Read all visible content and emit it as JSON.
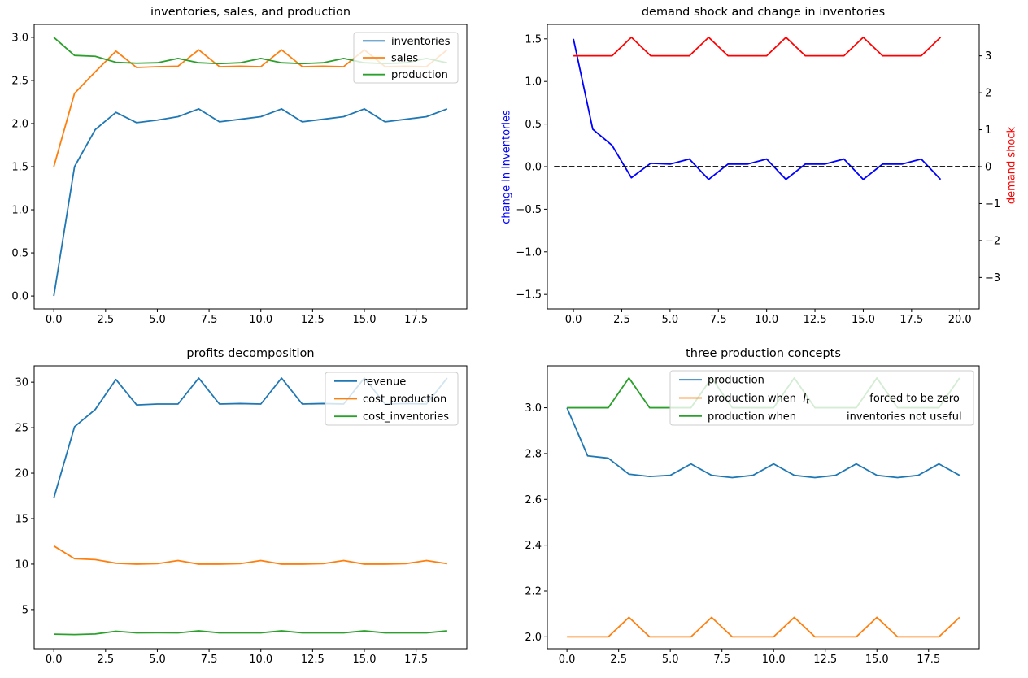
{
  "figure": {
    "background": "#ffffff",
    "text_color": "#000000"
  },
  "chart_data": [
    {
      "id": "inventories-sales-production",
      "type": "line",
      "title": "inventories, sales, and production",
      "xlabel": "",
      "ylabel": "",
      "grid": false,
      "x": [
        0,
        1,
        2,
        3,
        4,
        5,
        6,
        7,
        8,
        9,
        10,
        11,
        12,
        13,
        14,
        15,
        16,
        17,
        18,
        19
      ],
      "series": [
        {
          "name": "inventories",
          "label": "inventories",
          "color": "#1f77b4",
          "values": [
            0.0,
            1.5,
            1.93,
            2.13,
            2.01,
            2.04,
            2.08,
            2.17,
            2.02,
            2.05,
            2.08,
            2.17,
            2.02,
            2.05,
            2.08,
            2.17,
            2.02,
            2.05,
            2.08,
            2.17
          ]
        },
        {
          "name": "sales",
          "label": "sales",
          "color": "#ff7f0e",
          "values": [
            1.5,
            2.35,
            2.6,
            2.84,
            2.65,
            2.66,
            2.665,
            2.855,
            2.66,
            2.665,
            2.66,
            2.855,
            2.66,
            2.665,
            2.66,
            2.855,
            2.66,
            2.665,
            2.66,
            2.855
          ]
        },
        {
          "name": "production",
          "label": "production",
          "color": "#2ca02c",
          "values": [
            3.0,
            2.79,
            2.78,
            2.71,
            2.7,
            2.705,
            2.755,
            2.705,
            2.695,
            2.705,
            2.755,
            2.705,
            2.695,
            2.705,
            2.755,
            2.705,
            2.695,
            2.705,
            2.755,
            2.705
          ]
        }
      ],
      "xlim": [
        -0.95,
        19.95
      ],
      "ylim": [
        -0.15,
        3.15
      ],
      "xticks": {
        "values": [
          0,
          2.5,
          5,
          7.5,
          10,
          12.5,
          15,
          17.5
        ],
        "labels": [
          "0.0",
          "2.5",
          "5.0",
          "7.5",
          "10.0",
          "12.5",
          "15.0",
          "17.5"
        ]
      },
      "yticks": {
        "values": [
          0,
          0.5,
          1,
          1.5,
          2,
          2.5,
          3
        ],
        "labels": [
          "0.0",
          "0.5",
          "1.0",
          "1.5",
          "2.0",
          "2.5",
          "3.0"
        ]
      },
      "legend": {
        "location": "upper right",
        "labels": [
          "inventories",
          "sales",
          "production"
        ]
      }
    },
    {
      "id": "demand-shock-change-in-inventories",
      "type": "line",
      "title": "demand shock and change in inventories",
      "xlabel": "",
      "grid": false,
      "ylabel_left": {
        "text": "change in inventories",
        "color": "#0000ff"
      },
      "ylabel_right": {
        "text": "demand shock",
        "color": "#ff0000"
      },
      "x": [
        0,
        1,
        2,
        3,
        4,
        5,
        6,
        7,
        8,
        9,
        10,
        11,
        12,
        13,
        14,
        15,
        16,
        17,
        18,
        19
      ],
      "series": [
        {
          "name": "change in inventories",
          "axis": "left",
          "color": "#0000ff",
          "values": [
            1.5,
            0.44,
            0.25,
            -0.13,
            0.04,
            0.03,
            0.09,
            -0.15,
            0.03,
            0.03,
            0.09,
            -0.15,
            0.03,
            0.03,
            0.09,
            -0.15,
            0.03,
            0.03,
            0.09,
            -0.15
          ]
        },
        {
          "name": "demand shock",
          "axis": "right",
          "color": "#ff0000",
          "values": [
            3,
            3,
            3,
            3.5,
            3,
            3,
            3,
            3.5,
            3,
            3,
            3,
            3.5,
            3,
            3,
            3,
            3.5,
            3,
            3,
            3,
            3.5
          ]
        }
      ],
      "hline": {
        "y": 0,
        "x_start": -1,
        "x_end": 21,
        "color": "#000000",
        "style": "dashed"
      },
      "xlim": [
        -1.35,
        21.0
      ],
      "ylim_left": [
        -1.67,
        1.67
      ],
      "ylim_right": [
        -3.85,
        3.85
      ],
      "xticks": {
        "values": [
          0,
          2.5,
          5,
          7.5,
          10,
          12.5,
          15,
          17.5,
          20
        ],
        "labels": [
          "0.0",
          "2.5",
          "5.0",
          "7.5",
          "10.0",
          "12.5",
          "15.0",
          "17.5",
          "20.0"
        ]
      },
      "yticks_left": {
        "values": [
          -1.5,
          -1,
          -0.5,
          0,
          0.5,
          1,
          1.5
        ],
        "labels": [
          "−1.5",
          "−1.0",
          "−0.5",
          "0.0",
          "0.5",
          "1.0",
          "1.5"
        ]
      },
      "yticks_right": {
        "values": [
          -3,
          -2,
          -1,
          0,
          1,
          2,
          3
        ],
        "labels": [
          "−3",
          "−2",
          "−1",
          "0",
          "1",
          "2",
          "3"
        ]
      },
      "legend": null
    },
    {
      "id": "profits-decomposition",
      "type": "line",
      "title": "profits decomposition",
      "xlabel": "",
      "ylabel": "",
      "grid": false,
      "x": [
        0,
        1,
        2,
        3,
        4,
        5,
        6,
        7,
        8,
        9,
        10,
        11,
        12,
        13,
        14,
        15,
        16,
        17,
        18,
        19
      ],
      "series": [
        {
          "name": "revenue",
          "label": "revenue",
          "color": "#1f77b4",
          "values": [
            17.25,
            25.1,
            27.0,
            30.3,
            27.5,
            27.6,
            27.6,
            30.45,
            27.6,
            27.65,
            27.6,
            30.45,
            27.6,
            27.65,
            27.6,
            30.45,
            27.6,
            27.65,
            27.6,
            30.45
          ]
        },
        {
          "name": "cost_production",
          "label": "cost_production",
          "color": "#ff7f0e",
          "values": [
            12.0,
            10.6,
            10.5,
            10.1,
            10.0,
            10.05,
            10.4,
            10.0,
            10.0,
            10.05,
            10.4,
            10.0,
            10.0,
            10.05,
            10.4,
            10.0,
            10.0,
            10.05,
            10.4,
            10.05
          ]
        },
        {
          "name": "cost_inventories",
          "label": "cost_inventories",
          "color": "#2ca02c",
          "values": [
            2.3,
            2.25,
            2.32,
            2.62,
            2.45,
            2.46,
            2.44,
            2.66,
            2.45,
            2.44,
            2.45,
            2.66,
            2.45,
            2.44,
            2.45,
            2.66,
            2.45,
            2.44,
            2.45,
            2.66
          ]
        }
      ],
      "xlim": [
        -0.95,
        19.95
      ],
      "ylim": [
        0.7,
        31.8
      ],
      "xticks": {
        "values": [
          0,
          2.5,
          5,
          7.5,
          10,
          12.5,
          15,
          17.5
        ],
        "labels": [
          "0.0",
          "2.5",
          "5.0",
          "7.5",
          "10.0",
          "12.5",
          "15.0",
          "17.5"
        ]
      },
      "yticks": {
        "values": [
          5,
          10,
          15,
          20,
          25,
          30
        ],
        "labels": [
          "5",
          "10",
          "15",
          "20",
          "25",
          "30"
        ]
      },
      "legend": {
        "location": "upper right",
        "labels": [
          "revenue",
          "cost_production",
          "cost_inventories"
        ]
      }
    },
    {
      "id": "three-production-concepts",
      "type": "line",
      "title": "three production concepts",
      "xlabel": "",
      "ylabel": "",
      "grid": false,
      "x": [
        0,
        1,
        2,
        3,
        4,
        5,
        6,
        7,
        8,
        9,
        10,
        11,
        12,
        13,
        14,
        15,
        16,
        17,
        18,
        19
      ],
      "series": [
        {
          "name": "production",
          "label": "production",
          "color": "#1f77b4",
          "values": [
            3.0,
            2.79,
            2.78,
            2.71,
            2.7,
            2.705,
            2.755,
            2.705,
            2.695,
            2.705,
            2.755,
            2.705,
            2.695,
            2.705,
            2.755,
            2.705,
            2.695,
            2.705,
            2.755,
            2.705
          ]
        },
        {
          "name": "production when I_t forced to be zero",
          "label": "production when  $I_t$                  forced to be zero",
          "color": "#ff7f0e",
          "values": [
            2.0,
            2.0,
            2.0,
            2.085,
            2.0,
            2.0,
            2.0,
            2.085,
            2.0,
            2.0,
            2.0,
            2.085,
            2.0,
            2.0,
            2.0,
            2.085,
            2.0,
            2.0,
            2.0,
            2.085
          ]
        },
        {
          "name": "production when inventories not useful",
          "label": "production when               inventories not useful",
          "color": "#2ca02c",
          "values": [
            3.0,
            3.0,
            3.0,
            3.13,
            3.0,
            3.0,
            3.0,
            3.13,
            3.0,
            3.0,
            3.0,
            3.13,
            3.0,
            3.0,
            3.0,
            3.13,
            3.0,
            3.0,
            3.0,
            3.13
          ]
        }
      ],
      "xlim": [
        -0.95,
        19.95
      ],
      "ylim": [
        1.948,
        3.183
      ],
      "xticks": {
        "values": [
          0,
          2.5,
          5,
          7.5,
          10,
          12.5,
          15,
          17.5
        ],
        "labels": [
          "0.0",
          "2.5",
          "5.0",
          "7.5",
          "10.0",
          "12.5",
          "15.0",
          "17.5"
        ]
      },
      "yticks": {
        "values": [
          2.0,
          2.2,
          2.4,
          2.6,
          2.8,
          3.0
        ],
        "labels": [
          "2.0",
          "2.2",
          "2.4",
          "2.6",
          "2.8",
          "3.0"
        ]
      },
      "legend": {
        "location": "upper center",
        "labels": [
          "production",
          "production when I_t forced to be zero",
          "production when inventories not useful"
        ]
      }
    }
  ]
}
